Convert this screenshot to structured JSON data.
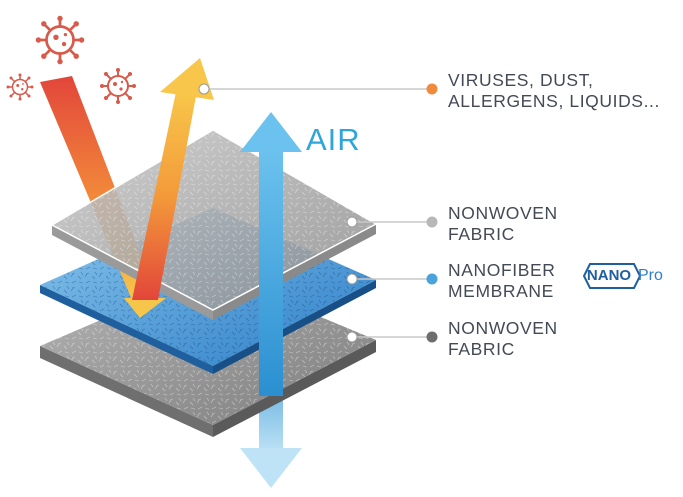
{
  "air_label": "AIR",
  "callouts": [
    {
      "id": "particles",
      "lines": [
        "VIRUSES, DUST,",
        "ALLERGENS, LIQUIDS..."
      ],
      "dot_color": "#f08a3c"
    },
    {
      "id": "nonwoven-top",
      "lines": [
        "NONWOVEN",
        "FABRIC"
      ],
      "dot_color": "#b8b8b8"
    },
    {
      "id": "nanofiber",
      "lines": [
        "NANOFIBER",
        "MEMBRANE"
      ],
      "dot_color": "#4aa3dc"
    },
    {
      "id": "nonwoven-bottom",
      "lines": [
        "NONWOVEN",
        "FABRIC"
      ],
      "dot_color": "#6e6e6e"
    }
  ],
  "badge": {
    "nano": "NANO",
    "pro": "Pro"
  },
  "colors": {
    "air_blue": "#2ea6dc",
    "arrow_orange": "#f2a33a",
    "arrow_red": "#e2463a",
    "membrane_blue": "#2f86cf",
    "fabric_gray": "#9a9a9a",
    "virus": "#d85a4a"
  }
}
